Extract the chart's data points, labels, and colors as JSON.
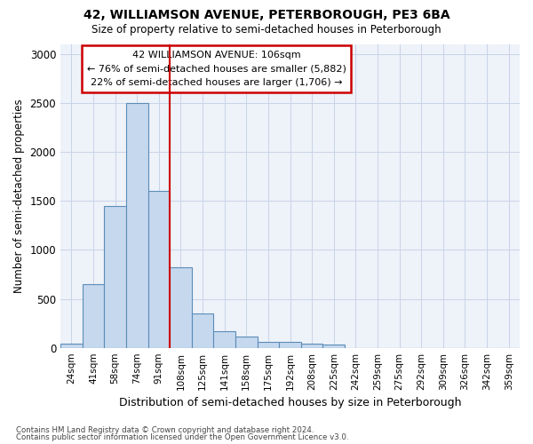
{
  "title1": "42, WILLIAMSON AVENUE, PETERBOROUGH, PE3 6BA",
  "title2": "Size of property relative to semi-detached houses in Peterborough",
  "xlabel": "Distribution of semi-detached houses by size in Peterborough",
  "ylabel": "Number of semi-detached properties",
  "categories": [
    "24sqm",
    "41sqm",
    "58sqm",
    "74sqm",
    "91sqm",
    "108sqm",
    "125sqm",
    "141sqm",
    "158sqm",
    "175sqm",
    "192sqm",
    "208sqm",
    "225sqm",
    "242sqm",
    "259sqm",
    "275sqm",
    "292sqm",
    "309sqm",
    "326sqm",
    "342sqm",
    "359sqm"
  ],
  "values": [
    40,
    650,
    1450,
    2500,
    1600,
    825,
    350,
    170,
    115,
    65,
    60,
    40,
    30,
    0,
    0,
    0,
    0,
    0,
    0,
    0,
    0
  ],
  "bar_color": "#c5d8ee",
  "bar_edge_color": "#5b8db8",
  "marker_color": "#cc0000",
  "annotation_title": "42 WILLIAMSON AVENUE: 106sqm",
  "annotation_line1": "← 76% of semi-detached houses are smaller (5,882)",
  "annotation_line2": "22% of semi-detached houses are larger (1,706) →",
  "ylim": [
    0,
    3100
  ],
  "yticks": [
    0,
    500,
    1000,
    1500,
    2000,
    2500,
    3000
  ],
  "footnote1": "Contains HM Land Registry data © Crown copyright and database right 2024.",
  "footnote2": "Contains public sector information licensed under the Open Government Licence v3.0.",
  "background_color": "#eef2f9",
  "grid_color": "#c8d4e8"
}
